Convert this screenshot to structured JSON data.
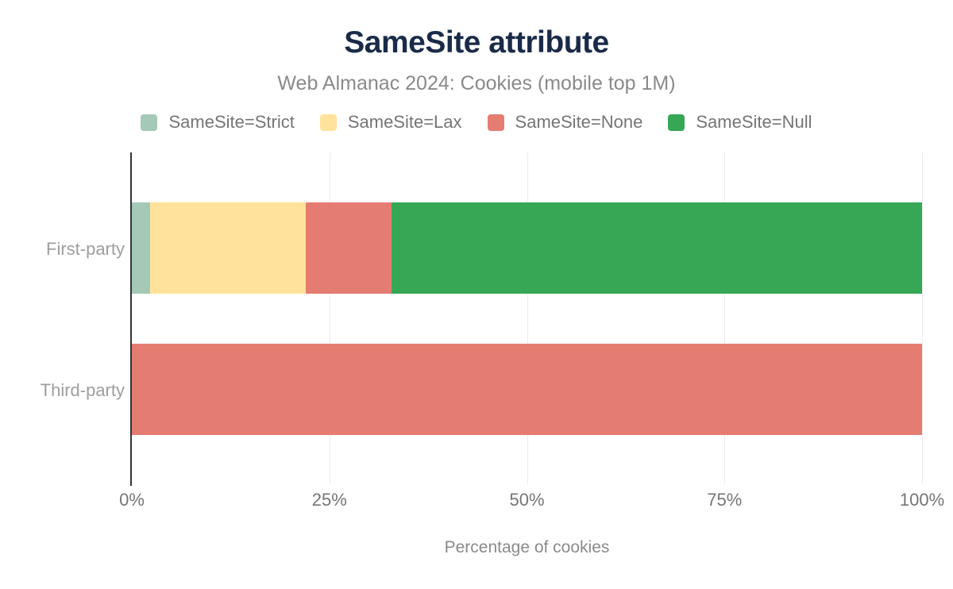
{
  "title": "SameSite attribute",
  "subtitle": "Web Almanac 2024: Cookies (mobile top 1M)",
  "brand_colors": {
    "title_navy": "#1a2b49",
    "axis_line": "#333333",
    "gridline": "#ececec",
    "muted_text": "#757575"
  },
  "chart_data": {
    "type": "bar",
    "orientation": "horizontal",
    "stacked": true,
    "title": "SameSite attribute",
    "subtitle": "Web Almanac 2024: Cookies (mobile top 1M)",
    "xlabel": "Percentage of cookies",
    "ylabel": "",
    "xlim": [
      0,
      100
    ],
    "x_ticks": [
      "0%",
      "25%",
      "50%",
      "75%",
      "100%"
    ],
    "grid": true,
    "legend_position": "top",
    "categories": [
      "First-party",
      "Third-party"
    ],
    "series": [
      {
        "name": "SameSite=Strict",
        "color": "#a4c9b6",
        "values": [
          2.3,
          0
        ]
      },
      {
        "name": "SameSite=Lax",
        "color": "#ffe39b",
        "values": [
          19.7,
          0
        ]
      },
      {
        "name": "SameSite=None",
        "color": "#e57c72",
        "values": [
          10.9,
          100
        ]
      },
      {
        "name": "SameSite=Null",
        "color": "#36a755",
        "values": [
          67.1,
          0
        ]
      }
    ]
  }
}
